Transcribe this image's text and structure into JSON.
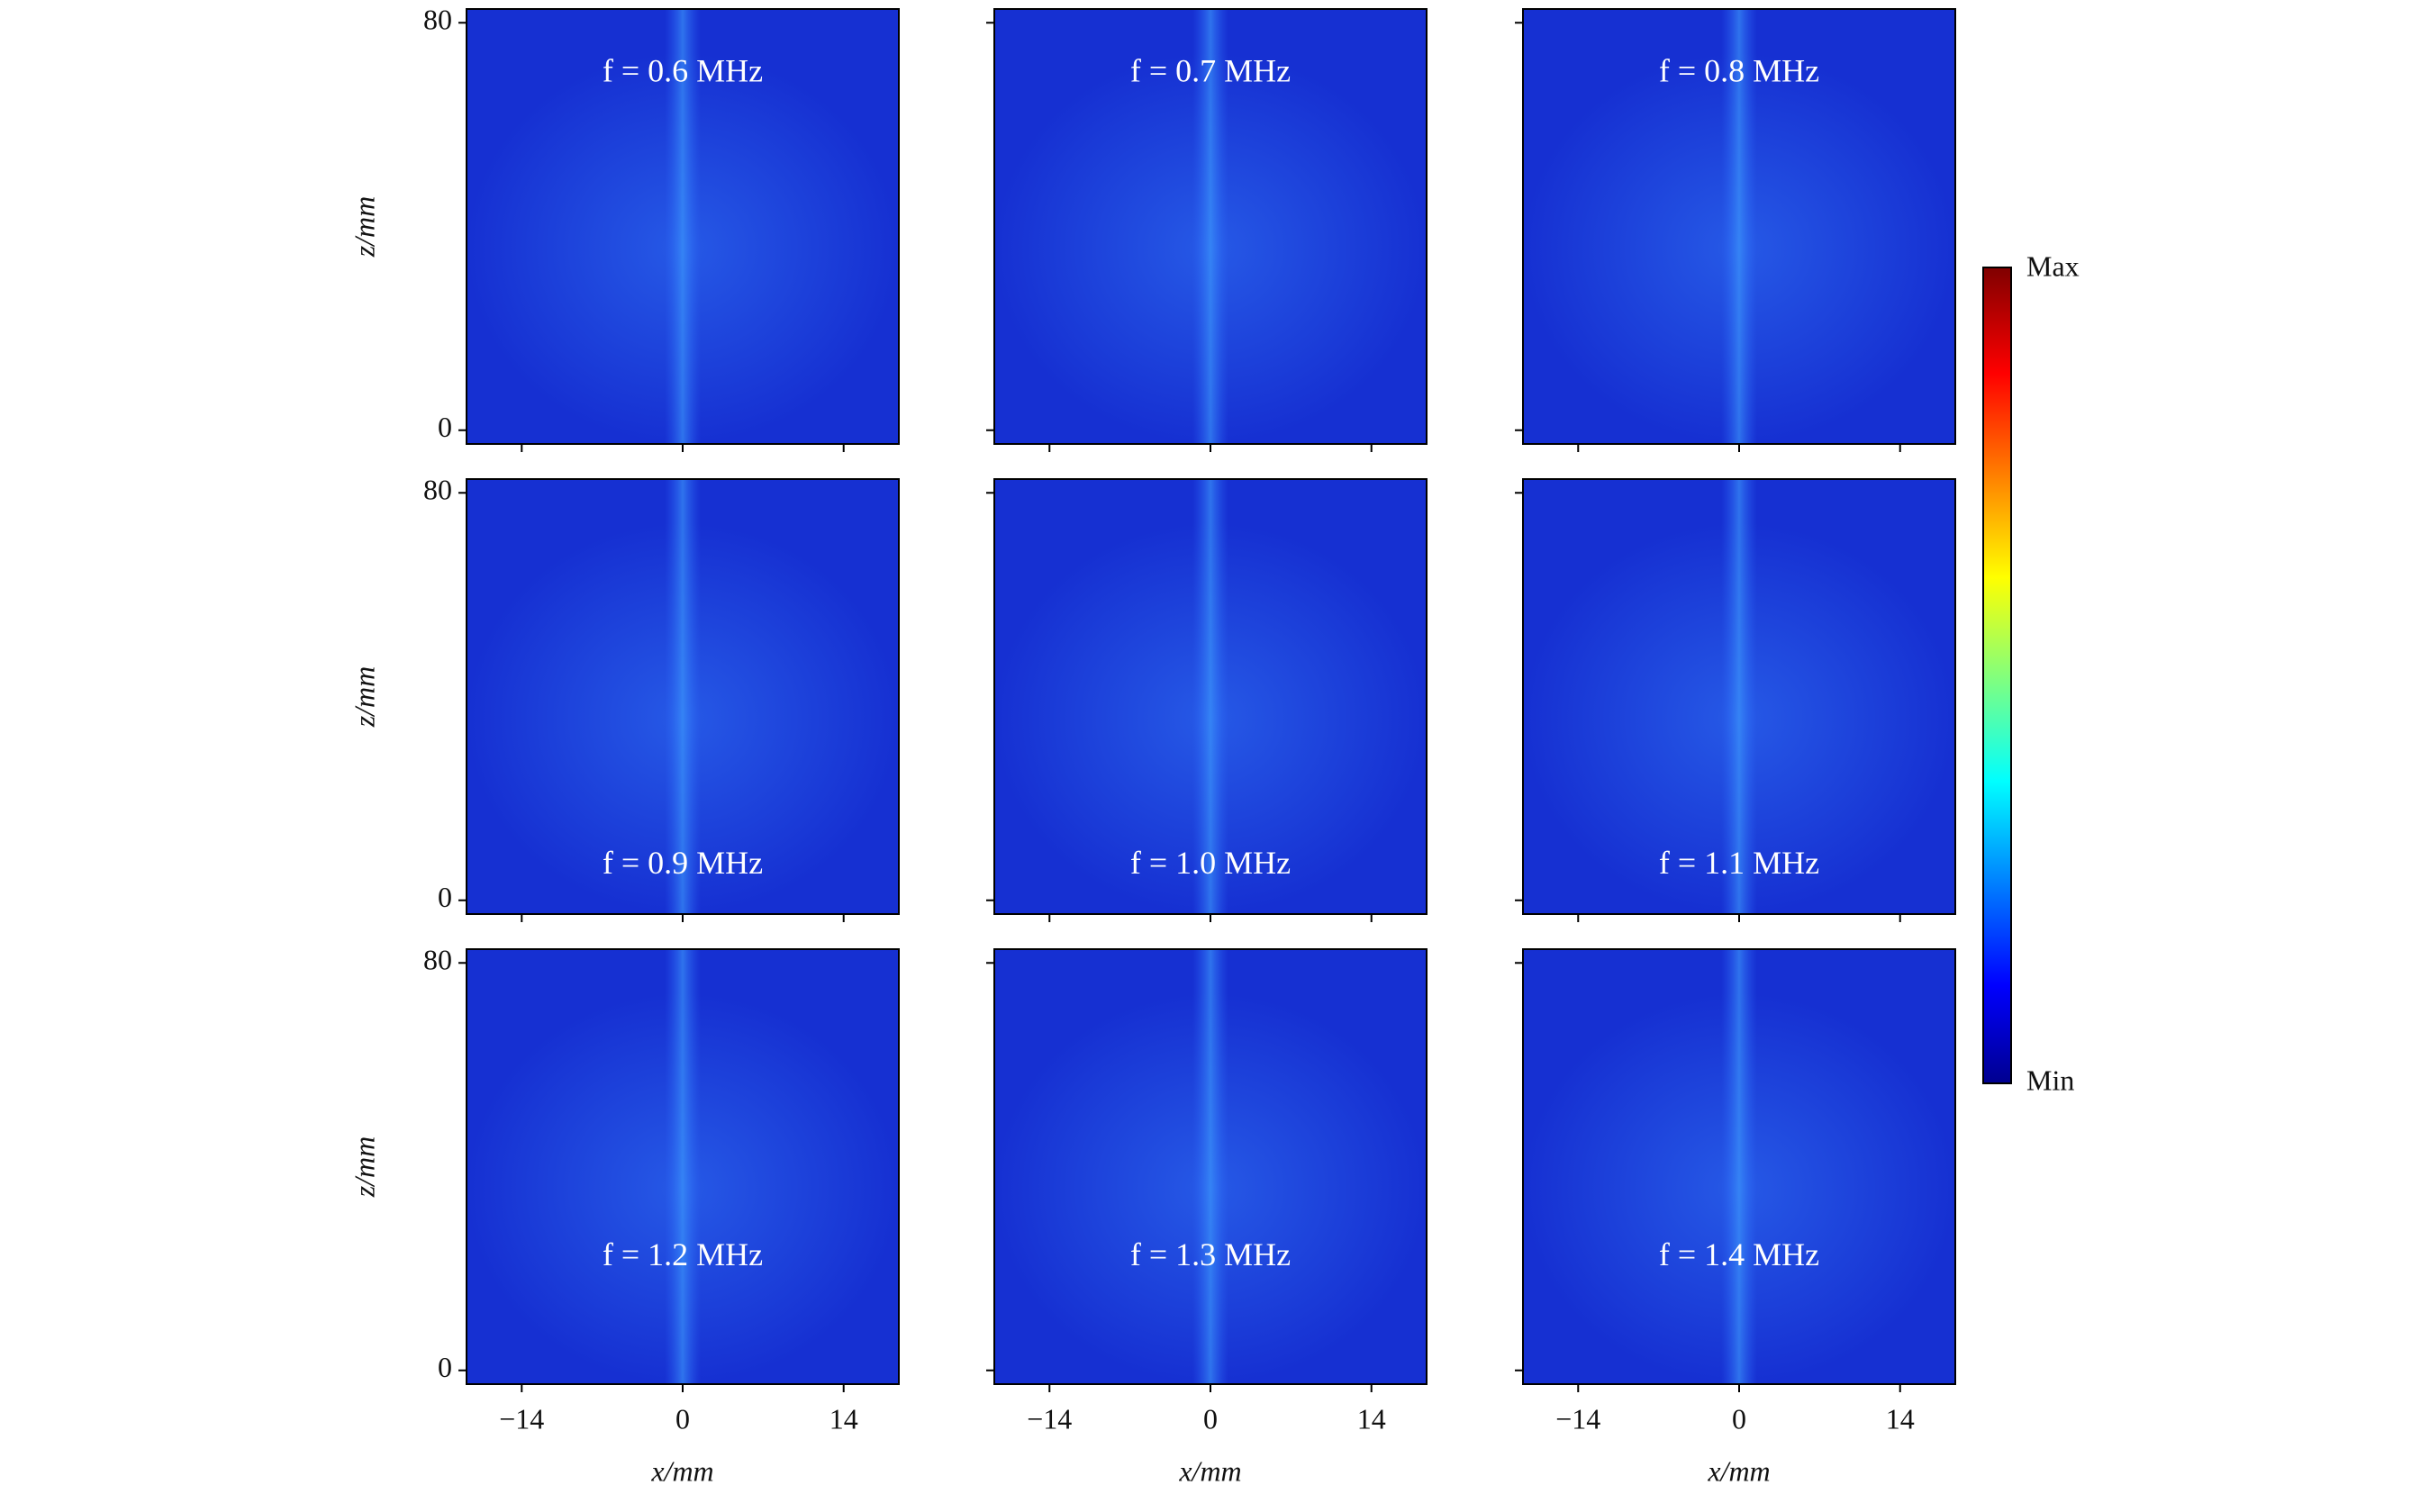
{
  "chart_data": [
    {
      "type": "heatmap",
      "title": "f = 0.6 MHz",
      "ylabel": "z/mm",
      "xlim": [
        -18.8,
        18.8
      ],
      "ylim": [
        -2.7,
        82.7
      ],
      "xticks": [
        -14,
        0,
        14
      ],
      "yticks": [
        0,
        80
      ]
    },
    {
      "type": "heatmap",
      "title": "f = 0.7 MHz",
      "xlim": [
        -18.8,
        18.8
      ],
      "ylim": [
        -2.7,
        82.7
      ],
      "xticks": [
        -14,
        0,
        14
      ],
      "yticks": [
        0,
        80
      ]
    },
    {
      "type": "heatmap",
      "title": "f = 0.8 MHz",
      "xlim": [
        -18.8,
        18.8
      ],
      "ylim": [
        -2.7,
        82.7
      ],
      "xticks": [
        -14,
        0,
        14
      ],
      "yticks": [
        0,
        80
      ]
    },
    {
      "type": "heatmap",
      "title": "f = 0.9 MHz",
      "ylabel": "z/mm",
      "xlim": [
        -18.8,
        18.8
      ],
      "ylim": [
        -2.7,
        82.7
      ],
      "xticks": [
        -14,
        0,
        14
      ],
      "yticks": [
        0,
        80
      ]
    },
    {
      "type": "heatmap",
      "title": "f = 1.0 MHz",
      "xlim": [
        -18.8,
        18.8
      ],
      "ylim": [
        -2.7,
        82.7
      ],
      "xticks": [
        -14,
        0,
        14
      ],
      "yticks": [
        0,
        80
      ]
    },
    {
      "type": "heatmap",
      "title": "f = 1.1 MHz",
      "xlim": [
        -18.8,
        18.8
      ],
      "ylim": [
        -2.7,
        82.7
      ],
      "xticks": [
        -14,
        0,
        14
      ],
      "yticks": [
        0,
        80
      ]
    },
    {
      "type": "heatmap",
      "title": "f = 1.2 MHz",
      "ylabel": "z/mm",
      "xlabel": "x/mm",
      "xlim": [
        -18.8,
        18.8
      ],
      "ylim": [
        -2.7,
        82.7
      ],
      "xticks": [
        {
          "value": -14,
          "label": "−14"
        },
        0,
        14
      ],
      "yticks": [
        0,
        80
      ]
    },
    {
      "type": "heatmap",
      "title": "f = 1.3 MHz",
      "xlabel": "x/mm",
      "xlim": [
        -18.8,
        18.8
      ],
      "ylim": [
        -2.7,
        82.7
      ],
      "xticks": [
        {
          "value": -14,
          "label": "−14"
        },
        0,
        14
      ],
      "yticks": [
        0,
        80
      ]
    },
    {
      "type": "heatmap",
      "title": "f = 1.4 MHz",
      "xlabel": "x/mm",
      "xlim": [
        -18.8,
        18.8
      ],
      "ylim": [
        -2.7,
        82.7
      ],
      "xticks": [
        {
          "value": -14,
          "label": "−14"
        },
        0,
        14
      ],
      "yticks": [
        0,
        80
      ]
    }
  ],
  "colorbar": {
    "max_label": "Max",
    "min_label": "Min"
  }
}
